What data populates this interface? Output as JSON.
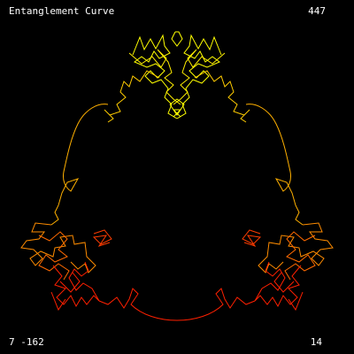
{
  "app": {
    "title": "Entanglement Curve",
    "count": "447",
    "coords": "7 -162",
    "level": "14"
  },
  "palette": {
    "background": "#000000",
    "text": "#ffffff",
    "yellow": "#ffff00",
    "gold": "#ffd700",
    "amber": "#ffb000",
    "orange": "#ff8c00",
    "deep_orange": "#ff5000",
    "red": "#ff2000"
  }
}
